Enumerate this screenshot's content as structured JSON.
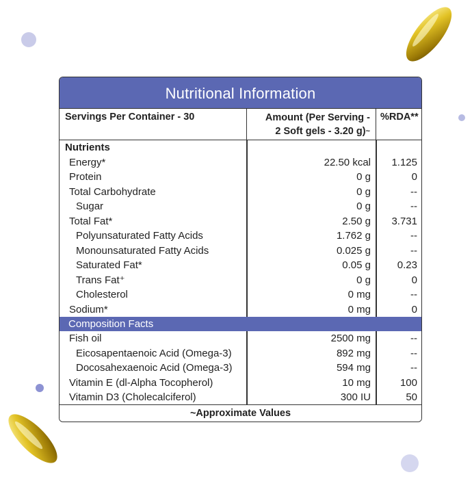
{
  "title": "Nutritional Information",
  "header": {
    "servings": "Servings Per Container - 30",
    "amount_line1": "Amount (Per Serving -",
    "amount_line2": "2 Soft gels - 3.20 g)",
    "amount_mark": "~",
    "rda": "%RDA**"
  },
  "nutrients_label": "Nutrients",
  "nutrients": [
    {
      "name": "Energy*",
      "amount": "22.50 kcal",
      "rda": "1.125",
      "indent": 1
    },
    {
      "name": "Protein",
      "amount": "0 g",
      "rda": "0",
      "indent": 1
    },
    {
      "name": "Total Carbohydrate",
      "amount": "0 g",
      "rda": "--",
      "indent": 1
    },
    {
      "name": "Sugar",
      "amount": "0 g",
      "rda": "--",
      "indent": 2
    },
    {
      "name": "Total Fat*",
      "amount": "2.50 g",
      "rda": "3.731",
      "indent": 1
    },
    {
      "name": "Polyunsaturated Fatty Acids",
      "amount": "1.762 g",
      "rda": "--",
      "indent": 2
    },
    {
      "name": "Monounsaturated Fatty Acids",
      "amount": "0.025 g",
      "rda": "--",
      "indent": 2
    },
    {
      "name": "Saturated Fat*",
      "amount": "0.05 g",
      "rda": "0.23",
      "indent": 2
    },
    {
      "name": "Trans Fat⁺",
      "amount": "0 g",
      "rda": "0",
      "indent": 2
    },
    {
      "name": "Cholesterol",
      "amount": "0 mg",
      "rda": "--",
      "indent": 2
    },
    {
      "name": "Sodium*",
      "amount": "0 mg",
      "rda": "0",
      "indent": 1
    }
  ],
  "composition_label": "Composition Facts",
  "composition": [
    {
      "name": "Fish oil",
      "amount": "2500 mg",
      "rda": "--",
      "indent": 1
    },
    {
      "name": "Eicosapentaenoic Acid (Omega-3)",
      "amount": "892 mg",
      "rda": "--",
      "indent": 2
    },
    {
      "name": "Docosahexaenoic Acid  (Omega-3)",
      "amount": "594 mg",
      "rda": "--",
      "indent": 2
    },
    {
      "name": "Vitamin E (dl-Alpha Tocopherol)",
      "amount": "10 mg",
      "rda": "100",
      "indent": 1
    },
    {
      "name": "Vitamin D3 (Cholecalciferol)",
      "amount": "300 IU",
      "rda": "50",
      "indent": 1
    }
  ],
  "footer": "~Approximate Values",
  "colors": {
    "accent": "#5b68b3",
    "capsule": "#d9b81a"
  }
}
